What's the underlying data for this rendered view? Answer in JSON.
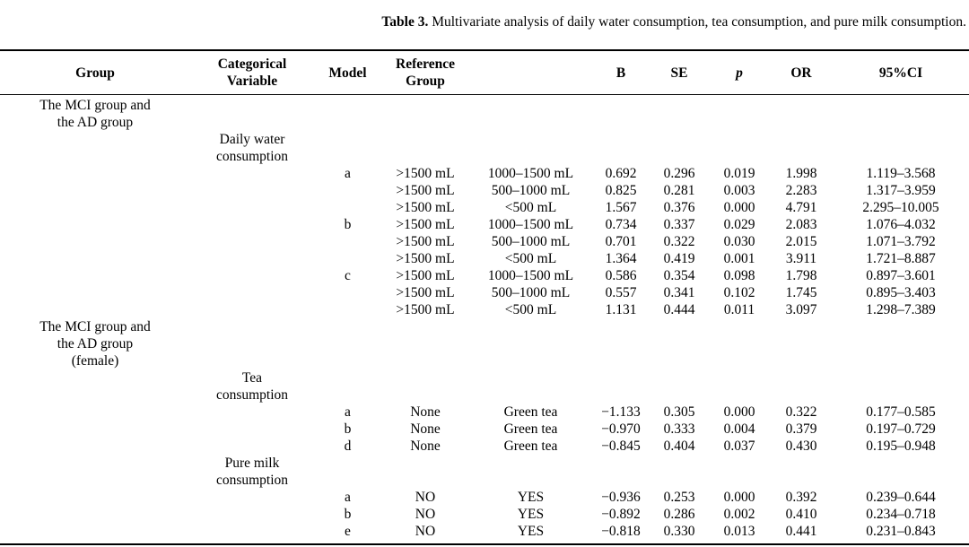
{
  "caption": {
    "label": "Table 3.",
    "text": " Multivariate analysis of daily water consumption, tea consumption, and pure milk consumption."
  },
  "table": {
    "columns": {
      "group": "Group",
      "categorical_variable": "Categorical\nVariable",
      "model": "Model",
      "reference_group": "Reference\nGroup",
      "comparison_group": "",
      "b": "B",
      "se": "SE",
      "p": "p",
      "or": "OR",
      "ci": "95%CI"
    },
    "rows": [
      [
        "The MCI group and\nthe AD group",
        "",
        "",
        "",
        "",
        "",
        "",
        "",
        "",
        ""
      ],
      [
        "",
        "Daily water\nconsumption",
        "",
        "",
        "",
        "",
        "",
        "",
        "",
        ""
      ],
      [
        "",
        "",
        "a",
        ">1500 mL",
        "1000–1500 mL",
        "0.692",
        "0.296",
        "0.019",
        "1.998",
        "1.119–3.568"
      ],
      [
        "",
        "",
        "",
        ">1500 mL",
        "500–1000 mL",
        "0.825",
        "0.281",
        "0.003",
        "2.283",
        "1.317–3.959"
      ],
      [
        "",
        "",
        "",
        ">1500 mL",
        "<500 mL",
        "1.567",
        "0.376",
        "0.000",
        "4.791",
        "2.295–10.005"
      ],
      [
        "",
        "",
        "b",
        ">1500 mL",
        "1000–1500 mL",
        "0.734",
        "0.337",
        "0.029",
        "2.083",
        "1.076–4.032"
      ],
      [
        "",
        "",
        "",
        ">1500 mL",
        "500–1000 mL",
        "0.701",
        "0.322",
        "0.030",
        "2.015",
        "1.071–3.792"
      ],
      [
        "",
        "",
        "",
        ">1500 mL",
        "<500 mL",
        "1.364",
        "0.419",
        "0.001",
        "3.911",
        "1.721–8.887"
      ],
      [
        "",
        "",
        "c",
        ">1500 mL",
        "1000–1500 mL",
        "0.586",
        "0.354",
        "0.098",
        "1.798",
        "0.897–3.601"
      ],
      [
        "",
        "",
        "",
        ">1500 mL",
        "500–1000 mL",
        "0.557",
        "0.341",
        "0.102",
        "1.745",
        "0.895–3.403"
      ],
      [
        "",
        "",
        "",
        ">1500 mL",
        "<500 mL",
        "1.131",
        "0.444",
        "0.011",
        "3.097",
        "1.298–7.389"
      ],
      [
        "The MCI group and\nthe AD group\n(female)",
        "",
        "",
        "",
        "",
        "",
        "",
        "",
        "",
        ""
      ],
      [
        "",
        "Tea\nconsumption",
        "",
        "",
        "",
        "",
        "",
        "",
        "",
        ""
      ],
      [
        "",
        "",
        "a",
        "None",
        "Green tea",
        "−1.133",
        "0.305",
        "0.000",
        "0.322",
        "0.177–0.585"
      ],
      [
        "",
        "",
        "b",
        "None",
        "Green tea",
        "−0.970",
        "0.333",
        "0.004",
        "0.379",
        "0.197–0.729"
      ],
      [
        "",
        "",
        "d",
        "None",
        "Green tea",
        "−0.845",
        "0.404",
        "0.037",
        "0.430",
        "0.195–0.948"
      ],
      [
        "",
        "Pure milk\nconsumption",
        "",
        "",
        "",
        "",
        "",
        "",
        "",
        ""
      ],
      [
        "",
        "",
        "a",
        "NO",
        "YES",
        "−0.936",
        "0.253",
        "0.000",
        "0.392",
        "0.239–0.644"
      ],
      [
        "",
        "",
        "b",
        "NO",
        "YES",
        "−0.892",
        "0.286",
        "0.002",
        "0.410",
        "0.234–0.718"
      ],
      [
        "",
        "",
        "e",
        "NO",
        "YES",
        "−0.818",
        "0.330",
        "0.013",
        "0.441",
        "0.231–0.843"
      ]
    ]
  }
}
